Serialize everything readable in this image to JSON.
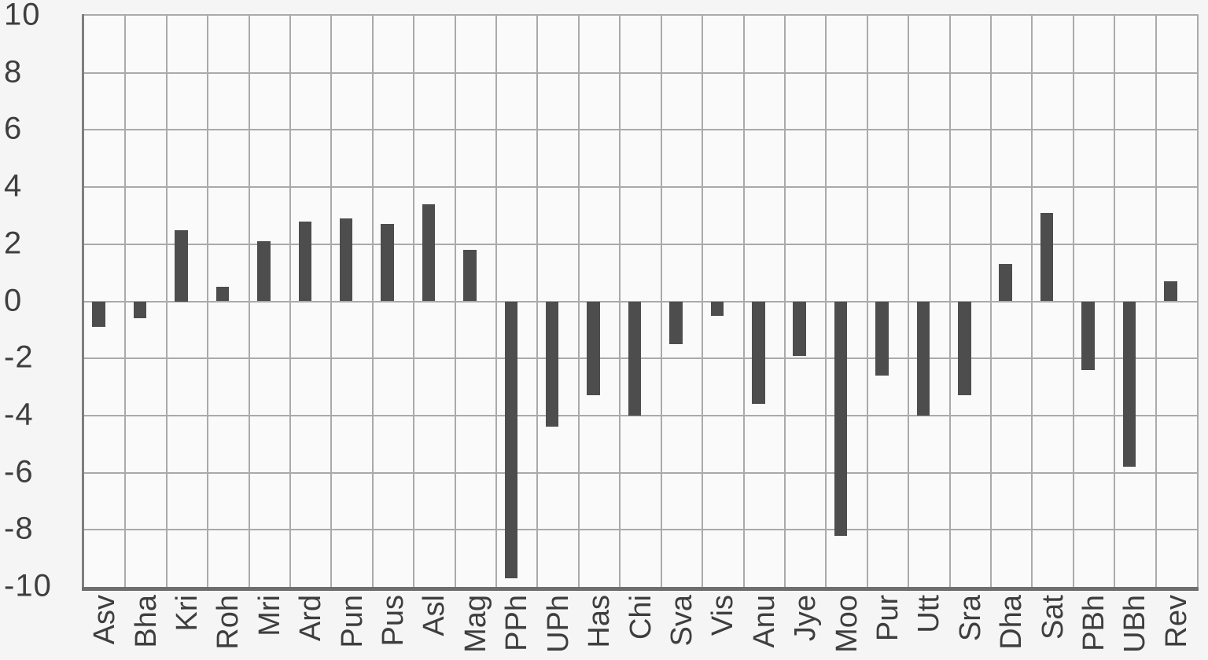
{
  "chart_data": {
    "type": "bar",
    "categories": [
      "Asv",
      "Bha",
      "Kri",
      "Roh",
      "Mri",
      "Ard",
      "Pun",
      "Pus",
      "Asl",
      "Mag",
      "PPh",
      "UPh",
      "Has",
      "Chi",
      "Sva",
      "Vis",
      "Anu",
      "Jye",
      "Moo",
      "Pur",
      "Utt",
      "Sra",
      "Dha",
      "Sat",
      "PBh",
      "UBh",
      "Rev"
    ],
    "values": [
      -0.9,
      -0.6,
      2.5,
      0.5,
      2.1,
      2.8,
      2.9,
      2.7,
      3.4,
      1.8,
      -9.7,
      -4.4,
      -3.3,
      -4.0,
      -1.5,
      -0.5,
      -3.6,
      -1.9,
      -8.2,
      -2.6,
      -4.0,
      -3.3,
      1.3,
      3.1,
      -2.4,
      -5.8,
      0.7
    ],
    "ylim": [
      -10,
      10
    ],
    "yticks": [
      10,
      8,
      6,
      4,
      2,
      0,
      -2,
      -4,
      -6,
      -8,
      -10
    ],
    "xlabel": "",
    "ylabel": "",
    "grid": "on",
    "legend": "none",
    "colors": {
      "bar": "#4d4d4d",
      "gridline": "#aaaaaa",
      "frame_left": "#7e7e7e",
      "frame_bottom": "#6e6e6e",
      "frame_top_right": "#aaaaaa",
      "plot_background": "#fafafa",
      "page_background": "#f5f5f5",
      "label_text": "#3e3e3e"
    }
  }
}
